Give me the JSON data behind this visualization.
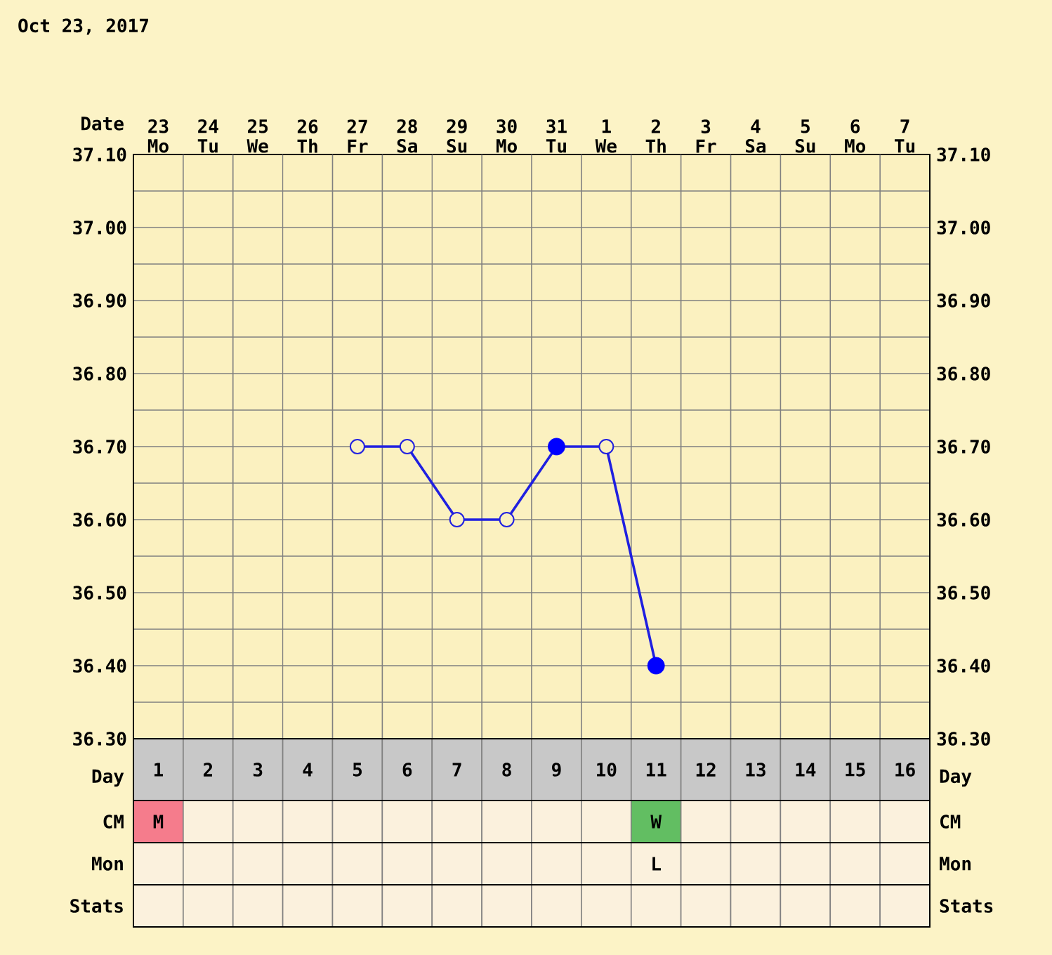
{
  "chart_data": {
    "type": "line",
    "title": "Oct 23, 2017",
    "categories": [
      "23 Mo",
      "24 Tu",
      "25 We",
      "26 Th",
      "27 Fr",
      "28 Sa",
      "29 Su",
      "30 Mo",
      "31 Tu",
      "1 We",
      "2 Th",
      "3 Fr",
      "4 Sa",
      "5 Su",
      "6 Mo",
      "7 Tu"
    ],
    "series": [
      {
        "color": "#2020e0",
        "values": [
          null,
          null,
          null,
          null,
          36.7,
          36.7,
          36.6,
          36.6,
          36.7,
          36.7,
          36.4,
          null,
          null,
          null,
          null,
          null
        ]
      },
      {
        "type": "scatter",
        "color": "#0000ff",
        "values": [
          null,
          null,
          null,
          null,
          null,
          null,
          null,
          null,
          36.7,
          null,
          36.4,
          null,
          null,
          null,
          null,
          null
        ]
      }
    ],
    "ylim": [
      36.3,
      37.1
    ],
    "yticks": [
      {
        "value": 36.3,
        "label": "36.30"
      },
      {
        "value": 36.4,
        "label": "36.40"
      },
      {
        "value": 36.5,
        "label": "36.50"
      },
      {
        "value": 36.6,
        "label": "36.60"
      },
      {
        "value": 36.7,
        "label": "36.70"
      },
      {
        "value": 36.8,
        "label": "36.80"
      },
      {
        "value": 36.9,
        "label": "36.90"
      },
      {
        "value": 37.0,
        "label": "37.00"
      },
      {
        "value": 37.1,
        "label": "37.10"
      }
    ],
    "y2lim": [
      36.3,
      37.1
    ],
    "y2ticks": [
      {
        "value": 36.3,
        "label": "36.30"
      },
      {
        "value": 36.4,
        "label": "36.40"
      },
      {
        "value": 36.5,
        "label": "36.50"
      },
      {
        "value": 36.6,
        "label": "36.60"
      },
      {
        "value": 36.7,
        "label": "36.70"
      },
      {
        "value": 36.8,
        "label": "36.80"
      },
      {
        "value": 36.9,
        "label": "36.90"
      },
      {
        "value": 37.0,
        "label": "37.00"
      },
      {
        "value": 37.1,
        "label": "37.10"
      }
    ],
    "annotations": [
      "Date",
      "Day",
      "CM",
      "Mon",
      "Stats",
      "1",
      "2",
      "3",
      "4",
      "5",
      "6",
      "7",
      "8",
      "9",
      "10",
      "11",
      "12",
      "13",
      "14",
      "15",
      "16",
      "M",
      "W",
      "L"
    ],
    "grid": true,
    "marker": "circle",
    "line_style": "solid"
  }
}
